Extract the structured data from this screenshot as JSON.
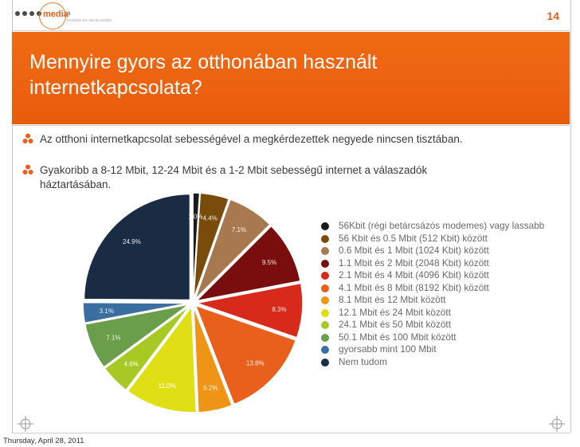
{
  "header": {
    "logo_text": "media",
    "logo_sub": "a",
    "logo_tagline": "kutatás és tanácsadás",
    "page_number": "14"
  },
  "title": "Mennyire gyors az otthonában használt internetkapcsolata?",
  "bullets": [
    "Az otthoni internetkapcsolat sebességével a megkérdezettek negyede nincsen tisztában.",
    "Gyakoribb a 8-12 Mbit, 12-24 Mbit és a 1-2 Mbit sebességű internet a válaszadók háztartásában."
  ],
  "footer": {
    "date": "Thursday, April 28, 2011"
  },
  "chart_data": {
    "type": "pie",
    "title": "",
    "labels": [
      "56Kbit (régi betárcsázós modemes) vagy lassabb",
      "56 Kbit és 0.5 Mbit (512 Kbit) között",
      "0.6 Mbit és 1 Mbit (1024 Kbit) között",
      "1.1 Mbit és 2 Mbit (2048 Kbit) között",
      "2.1 Mbit és 4 Mbit (4096 Kbit) között",
      "4.1 Mbit és 8 Mbit (8192 Kbit) között",
      "8.1 Mbit és 12 Mbit között",
      "12.1 Mbit és 24 Mbit között",
      "24.1 Mbit és 50 Mbit között",
      "50.1 Mbit és 100 Mbit között",
      "gyorsabb mint 100 Mbit",
      "Nem tudom"
    ],
    "values": [
      1.0,
      4.4,
      7.1,
      9.5,
      8.3,
      13.8,
      5.2,
      11.0,
      4.6,
      7.1,
      3.1,
      24.9
    ],
    "data_labels": [
      "1.0%",
      "4.4%",
      "7.1%",
      "9.5%",
      "8.3%",
      "13.8%",
      "5.2%",
      "11.0%",
      "4.6%",
      "7.1%",
      "3.1%",
      "24.9%"
    ],
    "colors": [
      "#1a1a1a",
      "#7a4c0c",
      "#a8794f",
      "#7a0e0e",
      "#d82a1a",
      "#e8601c",
      "#f09418",
      "#e0de14",
      "#a8c824",
      "#6a9e4a",
      "#3a6ea0",
      "#1a2b44"
    ],
    "exploded": true,
    "legend_position": "right"
  }
}
